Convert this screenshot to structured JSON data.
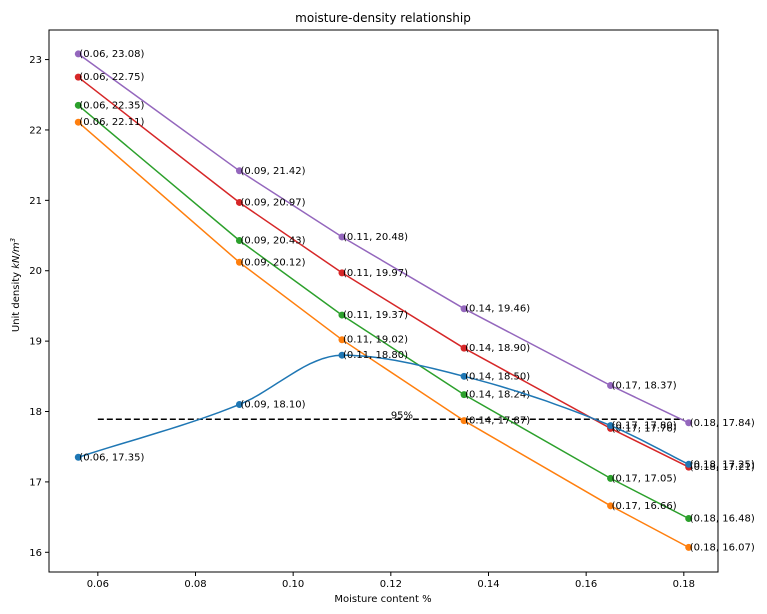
{
  "chart_data": {
    "type": "line",
    "title": "moisture-density relationship",
    "xlabel": "Moisture content %",
    "ylabel": "Unit density",
    "ylabel_unit": "kN/m",
    "ylabel_unit_exp": "3",
    "xlim": [
      0.05,
      0.187
    ],
    "ylim": [
      15.72,
      23.42
    ],
    "xticks": [
      0.06,
      0.08,
      0.1,
      0.12,
      0.14,
      0.16,
      0.18
    ],
    "xtick_labels": [
      "0.06",
      "0.08",
      "0.10",
      "0.12",
      "0.14",
      "0.16",
      "0.18"
    ],
    "yticks": [
      16,
      17,
      18,
      19,
      20,
      21,
      22,
      23
    ],
    "ytick_labels": [
      "16",
      "17",
      "18",
      "19",
      "20",
      "21",
      "22",
      "23"
    ],
    "grid": false,
    "legend": "none",
    "series": [
      {
        "color": "#9467bd",
        "x": [
          0.056,
          0.089,
          0.11,
          0.135,
          0.165,
          0.181
        ],
        "y": [
          23.08,
          21.42,
          20.48,
          19.46,
          18.37,
          17.84
        ],
        "labels": [
          "(0.06, 23.08)",
          "(0.09, 21.42)",
          "(0.11, 20.48)",
          "(0.14, 19.46)",
          "(0.17, 18.37)",
          "(0.18, 17.84)"
        ]
      },
      {
        "color": "#d62728",
        "x": [
          0.056,
          0.089,
          0.11,
          0.135,
          0.165,
          0.181
        ],
        "y": [
          22.75,
          20.97,
          19.97,
          18.9,
          17.76,
          17.21
        ],
        "labels": [
          "(0.06, 22.75)",
          "(0.09, 20.97)",
          "(0.11, 19.97)",
          "(0.14, 18.90)",
          "(0.17, 17.76)",
          "(0.18, 17.21)"
        ]
      },
      {
        "color": "#2ca02c",
        "x": [
          0.056,
          0.089,
          0.11,
          0.135,
          0.165,
          0.181
        ],
        "y": [
          22.35,
          20.43,
          19.37,
          18.24,
          17.05,
          16.48
        ],
        "labels": [
          "(0.06, 22.35)",
          "(0.09, 20.43)",
          "(0.11, 19.37)",
          "(0.14, 18.24)",
          "(0.17, 17.05)",
          "(0.18, 16.48)"
        ]
      },
      {
        "color": "#ff7f0e",
        "x": [
          0.056,
          0.089,
          0.11,
          0.135,
          0.165,
          0.181
        ],
        "y": [
          22.11,
          20.12,
          19.02,
          17.87,
          16.66,
          16.07
        ],
        "labels": [
          "(0.06, 22.11)",
          "(0.09, 20.12)",
          "(0.11, 19.02)",
          "(0.14, 17.87)",
          "(0.17, 16.66)",
          "(0.18, 16.07)"
        ]
      },
      {
        "color": "#1f77b4",
        "x": [
          0.056,
          0.089,
          0.11,
          0.135,
          0.165,
          0.181
        ],
        "y": [
          17.35,
          18.1,
          18.8,
          18.5,
          17.8,
          17.25
        ],
        "labels": [
          "(0.06, 17.35)",
          "(0.09, 18.10)",
          "(0.11, 18.80)",
          "(0.14, 18.50)",
          "(0.17, 17.80)",
          "(0.18, 17.25)"
        ]
      }
    ],
    "reference_line": {
      "label": "95%",
      "y": 17.89,
      "x": [
        0.06,
        0.18
      ],
      "color": "#000000",
      "style": "dashed"
    }
  }
}
